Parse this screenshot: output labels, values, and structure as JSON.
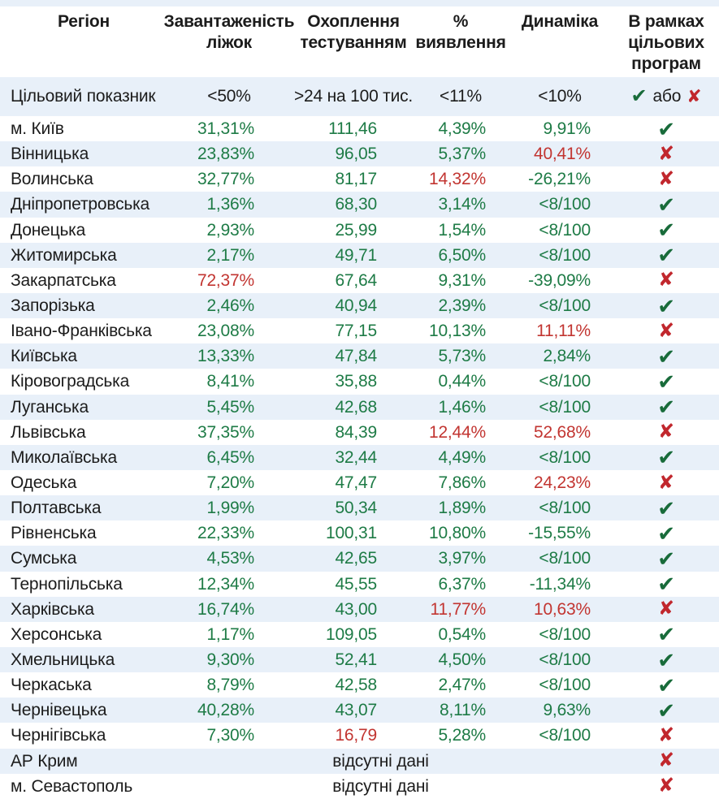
{
  "header": {
    "columns": [
      {
        "id": "region",
        "label": "Регіон"
      },
      {
        "id": "bed_occupancy",
        "label": "Завантаженість\nліжок"
      },
      {
        "id": "testing_coverage",
        "label": "Охоплення\nтестуванням"
      },
      {
        "id": "detection_rate",
        "label": "%\nвиявлення"
      },
      {
        "id": "dynamics",
        "label": "Динаміка"
      },
      {
        "id": "target_programs",
        "label": "В рамках\nцільових\nпрограм"
      }
    ]
  },
  "target_row": {
    "label": "Цільовий показник",
    "bed_occupancy": "<50%",
    "testing_coverage": ">24 на 100 тис.",
    "detection_rate": "<11%",
    "dynamics": "<10%",
    "or_label": "або"
  },
  "icons": {
    "check": "✔",
    "cross": "✘"
  },
  "colors": {
    "value_green": "#1e7b46",
    "value_red": "#c23531",
    "check_green": "#186b3a",
    "cross_red": "#c1272d",
    "row_highlight": "#e8f0f9",
    "text": "#1c1c1c"
  },
  "no_data_label": "відсутні дані",
  "rows": [
    {
      "region": "м. Київ",
      "values": [
        "31,31%",
        "111,46",
        "4,39%",
        "9,91%"
      ],
      "value_colors": [
        "green",
        "green",
        "green",
        "green"
      ],
      "status": "pass"
    },
    {
      "region": "Вінницька",
      "values": [
        "23,83%",
        "96,05",
        "5,37%",
        "40,41%"
      ],
      "value_colors": [
        "green",
        "green",
        "green",
        "red"
      ],
      "status": "fail"
    },
    {
      "region": "Волинська",
      "values": [
        "32,77%",
        "81,17",
        "14,32%",
        "-26,21%"
      ],
      "value_colors": [
        "green",
        "green",
        "red",
        "green"
      ],
      "status": "fail"
    },
    {
      "region": "Дніпропетровська",
      "values": [
        "1,36%",
        "68,30",
        "3,14%",
        "<8/100"
      ],
      "value_colors": [
        "green",
        "green",
        "green",
        "green"
      ],
      "status": "pass"
    },
    {
      "region": "Донецька",
      "values": [
        "2,93%",
        "25,99",
        "1,54%",
        "<8/100"
      ],
      "value_colors": [
        "green",
        "green",
        "green",
        "green"
      ],
      "status": "pass"
    },
    {
      "region": "Житомирська",
      "values": [
        "2,17%",
        "49,71",
        "6,50%",
        "<8/100"
      ],
      "value_colors": [
        "green",
        "green",
        "green",
        "green"
      ],
      "status": "pass"
    },
    {
      "region": "Закарпатська",
      "values": [
        "72,37%",
        "67,64",
        "9,31%",
        "-39,09%"
      ],
      "value_colors": [
        "red",
        "green",
        "green",
        "green"
      ],
      "status": "fail"
    },
    {
      "region": "Запорізька",
      "values": [
        "2,46%",
        "40,94",
        "2,39%",
        "<8/100"
      ],
      "value_colors": [
        "green",
        "green",
        "green",
        "green"
      ],
      "status": "pass"
    },
    {
      "region": "Івано-Франківська",
      "values": [
        "23,08%",
        "77,15",
        "10,13%",
        "11,11%"
      ],
      "value_colors": [
        "green",
        "green",
        "green",
        "red"
      ],
      "status": "fail"
    },
    {
      "region": "Київська",
      "values": [
        "13,33%",
        "47,84",
        "5,73%",
        "2,84%"
      ],
      "value_colors": [
        "green",
        "green",
        "green",
        "green"
      ],
      "status": "pass"
    },
    {
      "region": "Кіровоградська",
      "values": [
        "8,41%",
        "35,88",
        "0,44%",
        "<8/100"
      ],
      "value_colors": [
        "green",
        "green",
        "green",
        "green"
      ],
      "status": "pass"
    },
    {
      "region": "Луганська",
      "values": [
        "5,45%",
        "42,68",
        "1,46%",
        "<8/100"
      ],
      "value_colors": [
        "green",
        "green",
        "green",
        "green"
      ],
      "status": "pass"
    },
    {
      "region": "Львівська",
      "values": [
        "37,35%",
        "84,39",
        "12,44%",
        "52,68%"
      ],
      "value_colors": [
        "green",
        "green",
        "red",
        "red"
      ],
      "status": "fail"
    },
    {
      "region": "Миколаївська",
      "values": [
        "6,45%",
        "32,44",
        "4,49%",
        "<8/100"
      ],
      "value_colors": [
        "green",
        "green",
        "green",
        "green"
      ],
      "status": "pass"
    },
    {
      "region": "Одеська",
      "values": [
        "7,20%",
        "47,47",
        "7,86%",
        "24,23%"
      ],
      "value_colors": [
        "green",
        "green",
        "green",
        "red"
      ],
      "status": "fail"
    },
    {
      "region": "Полтавська",
      "values": [
        "1,99%",
        "50,34",
        "1,89%",
        "<8/100"
      ],
      "value_colors": [
        "green",
        "green",
        "green",
        "green"
      ],
      "status": "pass"
    },
    {
      "region": "Рівненська",
      "values": [
        "22,33%",
        "100,31",
        "10,80%",
        "-15,55%"
      ],
      "value_colors": [
        "green",
        "green",
        "green",
        "green"
      ],
      "status": "pass"
    },
    {
      "region": "Сумська",
      "values": [
        "4,53%",
        "42,65",
        "3,97%",
        "<8/100"
      ],
      "value_colors": [
        "green",
        "green",
        "green",
        "green"
      ],
      "status": "pass"
    },
    {
      "region": "Тернопільська",
      "values": [
        "12,34%",
        "45,55",
        "6,37%",
        "-11,34%"
      ],
      "value_colors": [
        "green",
        "green",
        "green",
        "green"
      ],
      "status": "pass"
    },
    {
      "region": "Харківська",
      "values": [
        "16,74%",
        "43,00",
        "11,77%",
        "10,63%"
      ],
      "value_colors": [
        "green",
        "green",
        "red",
        "red"
      ],
      "status": "fail"
    },
    {
      "region": "Херсонська",
      "values": [
        "1,17%",
        "109,05",
        "0,54%",
        "<8/100"
      ],
      "value_colors": [
        "green",
        "green",
        "green",
        "green"
      ],
      "status": "pass"
    },
    {
      "region": "Хмельницька",
      "values": [
        "9,30%",
        "52,41",
        "4,50%",
        "<8/100"
      ],
      "value_colors": [
        "green",
        "green",
        "green",
        "green"
      ],
      "status": "pass"
    },
    {
      "region": "Черкаська",
      "values": [
        "8,79%",
        "42,58",
        "2,47%",
        "<8/100"
      ],
      "value_colors": [
        "green",
        "green",
        "green",
        "green"
      ],
      "status": "pass"
    },
    {
      "region": "Чернівецька",
      "values": [
        "40,28%",
        "43,07",
        "8,11%",
        "9,63%"
      ],
      "value_colors": [
        "green",
        "green",
        "green",
        "green"
      ],
      "status": "pass"
    },
    {
      "region": "Чернігівська",
      "values": [
        "7,30%",
        "16,79",
        "5,28%",
        "<8/100"
      ],
      "value_colors": [
        "green",
        "red",
        "green",
        "green"
      ],
      "status": "fail"
    },
    {
      "region": "АР Крим",
      "no_data": true,
      "status": "fail"
    },
    {
      "region": "м. Севастополь",
      "no_data": true,
      "status": "fail"
    }
  ]
}
